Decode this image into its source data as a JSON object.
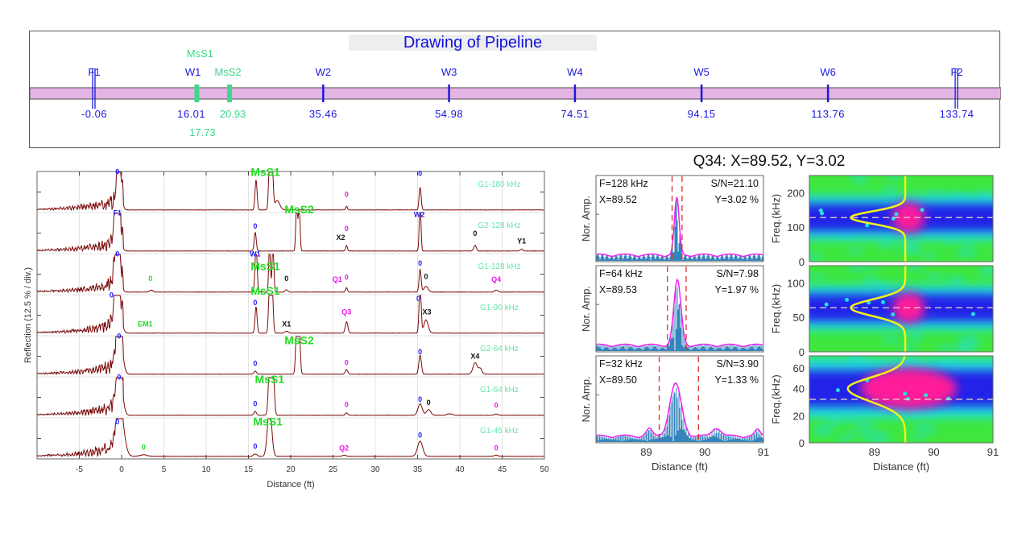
{
  "pipeline": {
    "title": "Drawing of Pipeline",
    "pipe_color": "#e4b4e4",
    "features": [
      {
        "label": "F1",
        "value": "-0.06",
        "pos": -0.06,
        "type": "flange",
        "color": "#1a1ae0"
      },
      {
        "label": "W1",
        "value": "16.01",
        "pos": 16.01,
        "type": "weld",
        "color": "#1a1ae0"
      },
      {
        "label": "W2",
        "value": "35.46",
        "pos": 35.46,
        "type": "weld",
        "color": "#1a1ae0"
      },
      {
        "label": "W3",
        "value": "54.98",
        "pos": 54.98,
        "type": "weld",
        "color": "#1a1ae0"
      },
      {
        "label": "W4",
        "value": "74.51",
        "pos": 74.51,
        "type": "weld",
        "color": "#1a1ae0"
      },
      {
        "label": "W5",
        "value": "94.15",
        "pos": 94.15,
        "type": "weld",
        "color": "#1a1ae0"
      },
      {
        "label": "W6",
        "value": "113.76",
        "pos": 113.76,
        "type": "weld",
        "color": "#1a1ae0"
      },
      {
        "label": "F2",
        "value": "133.74",
        "pos": 133.74,
        "type": "flange",
        "color": "#1a1ae0"
      }
    ],
    "sensors": [
      {
        "label": "MsS1",
        "value": "17.73",
        "pos": 17.73,
        "color": "#3ed88a"
      },
      {
        "label": "MsS2",
        "value": "20.93",
        "pos": 20.93,
        "color": "#3ed88a"
      }
    ]
  },
  "chart_data": [
    {
      "type": "line",
      "xlabel": "Distance (ft)",
      "ylabel": "Reflection (12.5 % / div.)",
      "xlim": [
        -10,
        50
      ],
      "xticks": [
        -5,
        0,
        5,
        10,
        15,
        20,
        25,
        30,
        35,
        40,
        45,
        50
      ],
      "grid": true,
      "line_color": "#7a0a0a",
      "trace_label_color": "#5de8a8",
      "series": [
        {
          "name": "G1-180 kHz",
          "peaks": [
            [
              -0.3,
              1.3,
              0.25
            ],
            [
              15.9,
              0.8,
              0.12
            ],
            [
              17.5,
              1.3,
              0.12
            ],
            [
              17.8,
              1.3,
              0.12
            ],
            [
              18.4,
              0.25,
              0.3
            ],
            [
              26.6,
              0.1,
              0.1
            ],
            [
              35.3,
              0.6,
              0.12
            ]
          ],
          "annotations": [
            {
              "text": "0",
              "x": -0.5,
              "amp": 0.95,
              "color": "blue"
            },
            {
              "text": "MsS1",
              "x": 17.0,
              "amp": 0.9,
              "color": "green"
            },
            {
              "text": "0",
              "x": 26.6,
              "amp": 0.35,
              "color": "magenta"
            },
            {
              "text": "0",
              "x": 35.3,
              "amp": 0.9,
              "color": "blue"
            }
          ]
        },
        {
          "name": "G2-128 kHz",
          "peaks": [
            [
              -0.5,
              1.3,
              0.3
            ],
            [
              15.8,
              0.5,
              0.12
            ],
            [
              20.7,
              1.3,
              0.1
            ],
            [
              21.0,
              1.3,
              0.1
            ],
            [
              26.6,
              0.15,
              0.1
            ],
            [
              35.3,
              1.3,
              0.1
            ],
            [
              41.8,
              0.15,
              0.15
            ],
            [
              47.3,
              0.05,
              0.15
            ]
          ],
          "annotations": [
            {
              "text": "F1",
              "x": -0.5,
              "amp": 0.95,
              "color": "blue"
            },
            {
              "text": "0",
              "x": 15.8,
              "amp": 0.6,
              "color": "blue"
            },
            {
              "text": "MsS2",
              "x": 21.0,
              "amp": 1.0,
              "color": "green"
            },
            {
              "text": "X2",
              "x": 25.9,
              "amp": 0.3,
              "color": "black"
            },
            {
              "text": "0",
              "x": 26.6,
              "amp": 0.36,
              "color": "magenta"
            },
            {
              "text": "W2",
              "x": 35.2,
              "amp": 0.9,
              "color": "blue"
            },
            {
              "text": "0",
              "x": 41.8,
              "amp": 0.4,
              "color": "black"
            },
            {
              "text": "Y1",
              "x": 47.3,
              "amp": 0.2,
              "color": "black"
            }
          ]
        },
        {
          "name": "G1-128 kHz",
          "peaks": [
            [
              -0.5,
              1.3,
              0.3
            ],
            [
              3.5,
              0.05,
              0.2
            ],
            [
              15.9,
              1.3,
              0.12
            ],
            [
              17.5,
              1.3,
              0.1
            ],
            [
              17.9,
              1.3,
              0.1
            ],
            [
              19.5,
              0.06,
              0.15
            ],
            [
              26.6,
              0.12,
              0.1
            ],
            [
              35.3,
              0.6,
              0.12
            ],
            [
              36.0,
              0.15,
              0.25
            ],
            [
              44.3,
              0.05,
              0.2
            ]
          ],
          "annotations": [
            {
              "text": "0",
              "x": -0.5,
              "amp": 0.95,
              "color": "blue"
            },
            {
              "text": "W1",
              "x": 15.8,
              "amp": 0.95,
              "color": "blue"
            },
            {
              "text": "MsS1",
              "x": 17.0,
              "amp": 0.88,
              "color": "green"
            },
            {
              "text": "0",
              "x": 3.4,
              "amp": 0.3,
              "color": "green"
            },
            {
              "text": "0",
              "x": 19.5,
              "amp": 0.3,
              "color": "black"
            },
            {
              "text": "Q1",
              "x": 25.5,
              "amp": 0.28,
              "color": "magenta"
            },
            {
              "text": "0",
              "x": 26.6,
              "amp": 0.33,
              "color": "magenta"
            },
            {
              "text": "0",
              "x": 35.3,
              "amp": 0.7,
              "color": "blue"
            },
            {
              "text": "0",
              "x": 36.0,
              "amp": 0.35,
              "color": "black"
            },
            {
              "text": "Q4",
              "x": 44.3,
              "amp": 0.28,
              "color": "magenta"
            }
          ]
        },
        {
          "name": "G1-90 kHz",
          "peaks": [
            [
              -0.5,
              1.3,
              0.35
            ],
            [
              15.9,
              0.7,
              0.12
            ],
            [
              17.5,
              1.3,
              0.12
            ],
            [
              17.8,
              1.3,
              0.12
            ],
            [
              19.5,
              0.05,
              0.2
            ],
            [
              26.6,
              0.3,
              0.15
            ],
            [
              35.3,
              1.3,
              0.12
            ],
            [
              36.0,
              0.35,
              0.25
            ]
          ],
          "annotations": [
            {
              "text": "0",
              "x": -1.2,
              "amp": 0.95,
              "color": "blue"
            },
            {
              "text": "0",
              "x": 15.8,
              "amp": 0.75,
              "color": "blue"
            },
            {
              "text": "MsS1",
              "x": 17.0,
              "amp": 0.85,
              "color": "green"
            },
            {
              "text": "EM1",
              "x": 2.8,
              "amp": 0.18,
              "color": "green"
            },
            {
              "text": "X1",
              "x": 19.5,
              "amp": 0.18,
              "color": "black"
            },
            {
              "text": "Q3",
              "x": 26.6,
              "amp": 0.5,
              "color": "magenta"
            },
            {
              "text": "0",
              "x": 35.1,
              "amp": 0.85,
              "color": "blue"
            },
            {
              "text": "X3",
              "x": 36.1,
              "amp": 0.5,
              "color": "black"
            }
          ]
        },
        {
          "name": "G2-64 kHz",
          "peaks": [
            [
              -0.3,
              1.3,
              0.35
            ],
            [
              15.8,
              0.08,
              0.15
            ],
            [
              20.7,
              1.3,
              0.12
            ],
            [
              21.0,
              1.3,
              0.12
            ],
            [
              26.6,
              0.12,
              0.15
            ],
            [
              35.3,
              0.5,
              0.15
            ],
            [
              41.8,
              0.3,
              0.25
            ],
            [
              42.4,
              0.15,
              0.2
            ]
          ],
          "annotations": [
            {
              "text": "0",
              "x": -0.3,
              "amp": 0.95,
              "color": "blue"
            },
            {
              "text": "0",
              "x": 15.8,
              "amp": 0.22,
              "color": "blue"
            },
            {
              "text": "MsS2",
              "x": 21.0,
              "amp": 0.8,
              "color": "green"
            },
            {
              "text": "0",
              "x": 26.6,
              "amp": 0.25,
              "color": "magenta"
            },
            {
              "text": "0",
              "x": 35.3,
              "amp": 0.53,
              "color": "blue"
            },
            {
              "text": "X4",
              "x": 41.8,
              "amp": 0.42,
              "color": "black"
            }
          ]
        },
        {
          "name": "G1-64 kHz",
          "peaks": [
            [
              -0.3,
              1.3,
              0.35
            ],
            [
              15.8,
              0.1,
              0.15
            ],
            [
              17.5,
              1.3,
              0.15
            ],
            [
              17.9,
              1.3,
              0.15
            ],
            [
              26.6,
              0.06,
              0.15
            ],
            [
              35.3,
              0.3,
              0.25
            ],
            [
              36.3,
              0.15,
              0.25
            ],
            [
              38.8,
              0.04,
              0.3
            ],
            [
              44.3,
              0.03,
              0.2
            ]
          ],
          "annotations": [
            {
              "text": "0",
              "x": -0.3,
              "amp": 0.95,
              "color": "blue"
            },
            {
              "text": "0",
              "x": 15.8,
              "amp": 0.25,
              "color": "blue"
            },
            {
              "text": "MsS1",
              "x": 17.5,
              "amp": 0.85,
              "color": "green"
            },
            {
              "text": "0",
              "x": 26.6,
              "amp": 0.22,
              "color": "magenta"
            },
            {
              "text": "0",
              "x": 35.3,
              "amp": 0.36,
              "color": "blue"
            },
            {
              "text": "0",
              "x": 36.3,
              "amp": 0.28,
              "color": "black"
            },
            {
              "text": "0",
              "x": 44.3,
              "amp": 0.2,
              "color": "magenta"
            }
          ]
        },
        {
          "name": "G1-45 kHz",
          "peaks": [
            [
              -0.2,
              1.3,
              0.45
            ],
            [
              2.6,
              0.04,
              0.4
            ],
            [
              15.8,
              0.06,
              0.2
            ],
            [
              17.5,
              1.3,
              0.25
            ],
            [
              26.3,
              0.03,
              0.2
            ],
            [
              35.3,
              0.4,
              0.3
            ],
            [
              44.3,
              0.03,
              0.2
            ]
          ],
          "annotations": [
            {
              "text": "0",
              "x": -0.5,
              "amp": 0.85,
              "color": "blue"
            },
            {
              "text": "0",
              "x": 2.6,
              "amp": 0.18,
              "color": "green"
            },
            {
              "text": "0",
              "x": 15.8,
              "amp": 0.2,
              "color": "blue"
            },
            {
              "text": "MsS1",
              "x": 17.3,
              "amp": 0.82,
              "color": "green"
            },
            {
              "text": "Q2",
              "x": 26.3,
              "amp": 0.16,
              "color": "magenta"
            },
            {
              "text": "0",
              "x": 35.3,
              "amp": 0.5,
              "color": "blue"
            },
            {
              "text": "0",
              "x": 44.3,
              "amp": 0.16,
              "color": "magenta"
            }
          ]
        }
      ]
    },
    {
      "type": "line",
      "title": "Q34: X=89.52, Y=3.02",
      "xlabel": "Distance (ft)",
      "ylabel": "Nor. Amp.",
      "xlim": [
        88.14,
        91
      ],
      "xticks": [
        89,
        90,
        91
      ],
      "signal_color": "#1f77b4",
      "envelope_color": "#ee22ee",
      "window_color": "#e03030",
      "panels": [
        {
          "freq_label": "F=128 kHz",
          "x_label": "X=89.52",
          "sn_label": "S/N=21.10",
          "y_label": "Y=3.02 %",
          "peak_x": 89.52,
          "peak_amp": 0.66,
          "peak_width": 0.04,
          "window": [
            89.44,
            89.61
          ],
          "cycles_per_ft": 60
        },
        {
          "freq_label": "F=64 kHz",
          "x_label": "X=89.53",
          "sn_label": "S/N=7.98",
          "y_label": "Y=1.97 %",
          "peak_x": 89.53,
          "peak_amp": 0.75,
          "peak_width": 0.06,
          "window": [
            89.36,
            89.68
          ],
          "cycles_per_ft": 40
        },
        {
          "freq_label": "F=32 kHz",
          "x_label": "X=89.50",
          "sn_label": "S/N=3.90",
          "y_label": "Y=1.33 %",
          "peak_x": 89.5,
          "peak_amp": 0.6,
          "peak_width": 0.1,
          "window": [
            89.22,
            89.89
          ],
          "cycles_per_ft": 25
        }
      ]
    },
    {
      "type": "heatmap",
      "xlabel": "Distance (ft)",
      "ylabel": "Freq.(kHz)",
      "xlim": [
        87.9,
        91
      ],
      "xticks": [
        89,
        90,
        91
      ],
      "marker_x": 89.52,
      "colors": {
        "background": "#3ee63e",
        "cyan": "#22e0e0",
        "blue": "#2222e8",
        "magenta": "#ff1a9a",
        "curve": "#f2f21a",
        "dash": "#e8d8c8"
      },
      "panels": [
        {
          "ylim": [
            0,
            250
          ],
          "yticks": [
            0,
            100,
            200
          ],
          "center_freq": 128,
          "curve_min_x": 88.6,
          "curve_sigma": 18
        },
        {
          "ylim": [
            0,
            125
          ],
          "yticks": [
            0,
            50,
            100
          ],
          "center_freq": 64,
          "curve_min_x": 88.6,
          "curve_sigma": 12
        },
        {
          "ylim": [
            0,
            64
          ],
          "yticks": [
            0,
            20,
            40,
            60
          ],
          "center_freq": 32,
          "curve_min_x": 88.55,
          "curve_sigma": 8,
          "curve_center": 40
        }
      ]
    }
  ]
}
